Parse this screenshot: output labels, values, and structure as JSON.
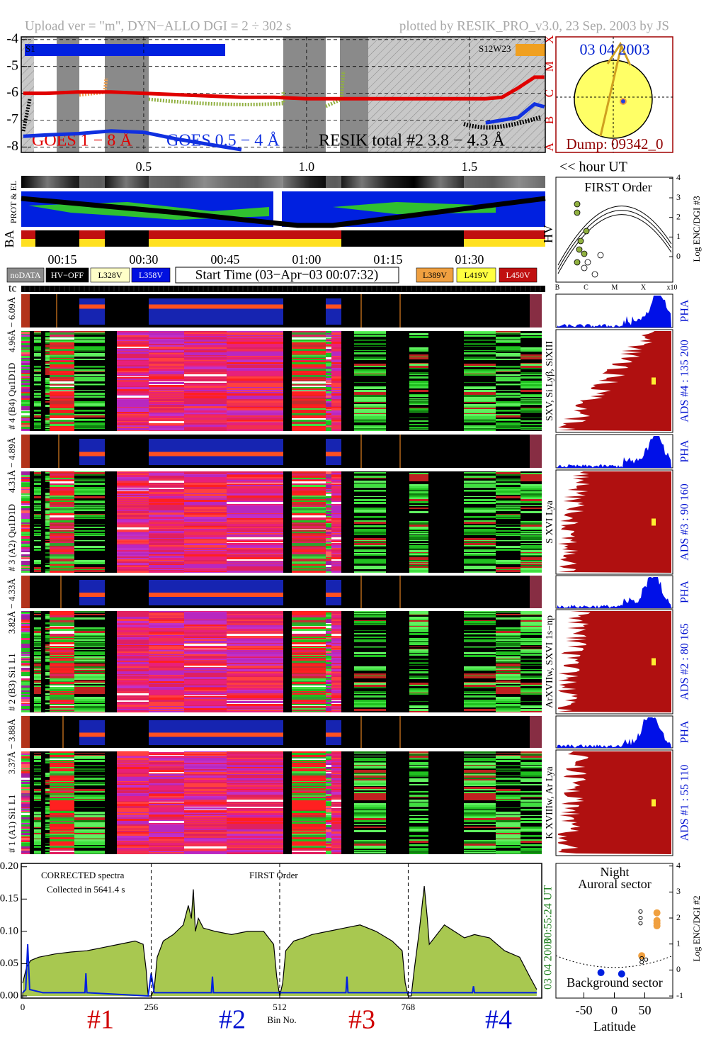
{
  "header": {
    "left": "Upload ver = \"m\", DYN−ALLO DGI =   2 ÷ 302 s",
    "right": "plotted by RESIK_PRO_v3.0, 23 Sep. 2003 by JS"
  },
  "goes": {
    "xlim": [
      0.124,
      1.733
    ],
    "ylim": [
      -8.2,
      -3.9
    ],
    "yticks": [
      -4,
      -5,
      -6,
      -7,
      -8
    ],
    "class_labels": [
      {
        "value": -4,
        "label": "X"
      },
      {
        "value": -5,
        "label": "M"
      },
      {
        "value": -6,
        "label": "C"
      },
      {
        "value": -7,
        "label": "B"
      },
      {
        "value": -8,
        "label": "A"
      }
    ],
    "region_left": "S1",
    "region_right": "S12W23",
    "series": [
      {
        "name": "GOES 1 − 8 Å",
        "color": "#e00000",
        "x": [
          0.13,
          0.2,
          0.3,
          0.4,
          0.5,
          0.6,
          0.7,
          0.8,
          0.9,
          1.0,
          1.1,
          1.2,
          1.3,
          1.4,
          1.5,
          1.55,
          1.6,
          1.65,
          1.7,
          1.73
        ],
        "values": [
          -6.0,
          -6.0,
          -5.95,
          -5.95,
          -6.0,
          -6.05,
          -6.1,
          -6.15,
          -6.15,
          -6.2,
          -6.2,
          -6.2,
          -6.2,
          -6.2,
          -6.2,
          -6.2,
          -6.15,
          -5.8,
          -5.4,
          -5.4
        ]
      },
      {
        "name": "GOES 0.5 − 4 Å",
        "color": "#1030e0",
        "x": [
          0.13,
          0.2,
          0.3,
          0.4,
          0.5,
          0.6,
          0.7,
          0.8,
          1.2,
          1.55,
          1.6,
          1.65,
          1.7,
          1.73
        ],
        "values": [
          -7.6,
          -7.55,
          -7.5,
          -7.4,
          -7.45,
          -7.7,
          -7.9,
          -8.1,
          null,
          -7.1,
          -7.0,
          -6.9,
          -6.4,
          -6.5
        ]
      }
    ],
    "resik_label": "RESIK total #2  3.8 − 4.3 Å"
  },
  "disk": {
    "date": "03 04 2003",
    "dump": "Dump: 09342_0"
  },
  "hour_axis": {
    "ticks": [
      0.5,
      {
        "value": 1.0,
        "label": "1.0"
      },
      1.5
    ],
    "label": "<< hour UT"
  },
  "strips": {
    "prot": "PROT & EL",
    "ba": "BA",
    "hv": "HV"
  },
  "first_order": {
    "title": "FIRST Order",
    "xticks": [
      "B",
      "C",
      "M",
      "X",
      "x10"
    ],
    "ylim": [
      -1.3,
      4.05
    ],
    "yticks": [
      0,
      1,
      2,
      3,
      4
    ],
    "ylabel": "Log ENC/DGI #3"
  },
  "time_ticks": [
    {
      "value": 0.25,
      "label": "00:15"
    },
    {
      "value": 0.5,
      "label": "00:30"
    },
    {
      "value": 0.75,
      "label": "00:45"
    },
    {
      "value": 1.0,
      "label": "01:00"
    },
    {
      "value": 1.25,
      "label": "01:15"
    },
    {
      "value": 1.5,
      "label": "01:30"
    }
  ],
  "legend": {
    "items": [
      {
        "name": "noDATA",
        "color": "#8c8c8c"
      },
      {
        "name": "HV−OFF",
        "color": "#000000"
      },
      {
        "name": "L328V",
        "color": "#ffffc8"
      },
      {
        "name": "L358V",
        "color": "#0010e0"
      },
      {
        "name": "L389V",
        "color": "#f0a040"
      },
      {
        "name": "L419V",
        "color": "#ffff40"
      },
      {
        "name": "L450V",
        "color": "#c01010"
      }
    ],
    "start_time": "Start Time (03−Apr−03 00:07:32)"
  },
  "tc": "tc",
  "channels": [
    {
      "id": "# 4 (B4) Qu1D1D",
      "range": "4.96Å − 6.09Å",
      "lines": "SXV, Si Lyβ, SiXIII",
      "ads": "ADS #4 :   135 200",
      "pha": "PHA"
    },
    {
      "id": "# 3 (A2) Qu1D1D",
      "range": "4.31Å − 4.89Å",
      "lines": "S XVI Lya",
      "ads": "ADS #3 :   90 160",
      "pha": "PHA"
    },
    {
      "id": "# 2 (B3) Si1 L1",
      "range": "3.82Å − 4.33Å",
      "lines": "ArXVIIw, SXVI 1s−np",
      "ads": "ADS #2 :   80 165",
      "pha": "PHA"
    },
    {
      "id": "# 1 (A1) Si1 L1",
      "range": "3.37Å − 3.88Å",
      "lines": "K XVIIIw, Ar Lya",
      "ads": "ADS #1 :   55 110",
      "pha": "PHA"
    }
  ],
  "spectrum": {
    "title": "CORRECTED spectra",
    "collected": "Collected in  5641.4 s",
    "order": "FIRST Order",
    "xlim": [
      0,
      1034
    ],
    "xticks": [
      0,
      256,
      512,
      768
    ],
    "xlabel": "Bin No.",
    "ylim": [
      0,
      0.203
    ],
    "yticks": [
      {
        "value": 0,
        "label": "0.00"
      },
      0.05,
      {
        "value": 0.1,
        "label": "0.10"
      },
      0.15,
      {
        "value": 0.2,
        "label": "0.20"
      }
    ],
    "channel_labels": [
      {
        "label": "#1",
        "color": "#d00000"
      },
      {
        "label": "#2",
        "color": "#0010d0"
      },
      {
        "label": "#3",
        "color": "#d00000"
      },
      {
        "label": "#4",
        "color": "#0010d0"
      }
    ],
    "time": "00:55:24 UT",
    "date": "03 04 2003",
    "series": [
      {
        "color": "#000000",
        "fill": "#a8c850",
        "x": [
          0,
          8,
          16,
          32,
          64,
          96,
          128,
          160,
          192,
          224,
          240,
          246,
          250,
          256,
          262,
          268,
          280,
          300,
          320,
          330,
          336,
          340,
          344,
          350,
          360,
          384,
          416,
          448,
          480,
          500,
          506,
          512,
          518,
          524,
          540,
          560,
          576,
          608,
          640,
          672,
          704,
          736,
          756,
          762,
          768,
          774,
          780,
          790,
          800,
          806,
          810,
          820,
          840,
          860,
          880,
          900,
          930,
          960,
          990,
          1010,
          1024
        ],
        "values": [
          0.02,
          0.045,
          0.055,
          0.06,
          0.065,
          0.068,
          0.07,
          0.075,
          0.08,
          0.085,
          0.08,
          0.04,
          0.0,
          0.0,
          0.01,
          0.06,
          0.085,
          0.095,
          0.11,
          0.14,
          0.12,
          0.165,
          0.1,
          0.12,
          0.105,
          0.1,
          0.095,
          0.1,
          0.1,
          0.08,
          0.03,
          0.0,
          0.02,
          0.07,
          0.085,
          0.09,
          0.095,
          0.1,
          0.105,
          0.11,
          0.1,
          0.085,
          0.07,
          0.02,
          0.0,
          0.0,
          0.04,
          0.1,
          0.17,
          0.12,
          0.08,
          0.09,
          0.11,
          0.1,
          0.09,
          0.095,
          0.09,
          0.07,
          0.06,
          0.03,
          0.01
        ]
      },
      {
        "color": "#0020e0",
        "x": [
          0,
          6,
          10,
          14,
          40,
          124,
          126,
          128,
          250,
          256,
          262,
          376,
          378,
          380,
          512,
          644,
          646,
          648,
          768,
          896,
          898,
          900,
          1024
        ],
        "values": [
          0.005,
          0.01,
          0.08,
          0.01,
          0.005,
          0.005,
          0.035,
          0.005,
          0.0,
          0.035,
          0.005,
          0.005,
          0.03,
          0.005,
          0.005,
          0.005,
          0.03,
          0.005,
          0.005,
          0.005,
          0.015,
          0.005,
          0.005
        ]
      }
    ]
  },
  "latitude": {
    "night": "Night",
    "auroral": "Auroral sector",
    "background": "Background sector",
    "xlabel": "Latitude",
    "ylabel": "Log ENC/DGI #2",
    "xlim": [
      -96,
      96
    ],
    "xticks": [
      -50,
      0,
      50
    ],
    "ylim": [
      -1.08,
      4.1
    ],
    "yticks": [
      -1,
      0,
      1,
      2,
      3,
      4
    ],
    "series": [
      {
        "color": "#f0a040",
        "marker": "filled",
        "x": [
          70,
          70,
          70,
          70,
          45
        ],
        "values": [
          1.7,
          1.8,
          1.9,
          2.2,
          0.55
        ]
      },
      {
        "color": "#0020e0",
        "marker": "filled",
        "x": [
          -22,
          12
        ],
        "values": [
          -0.1,
          -0.15
        ]
      },
      {
        "color": "#000000",
        "marker": "open",
        "x": [
          43,
          43,
          43,
          45,
          45,
          52
        ],
        "values": [
          2.25,
          2.0,
          1.8,
          0.3,
          0.45,
          0.4
        ]
      }
    ]
  }
}
